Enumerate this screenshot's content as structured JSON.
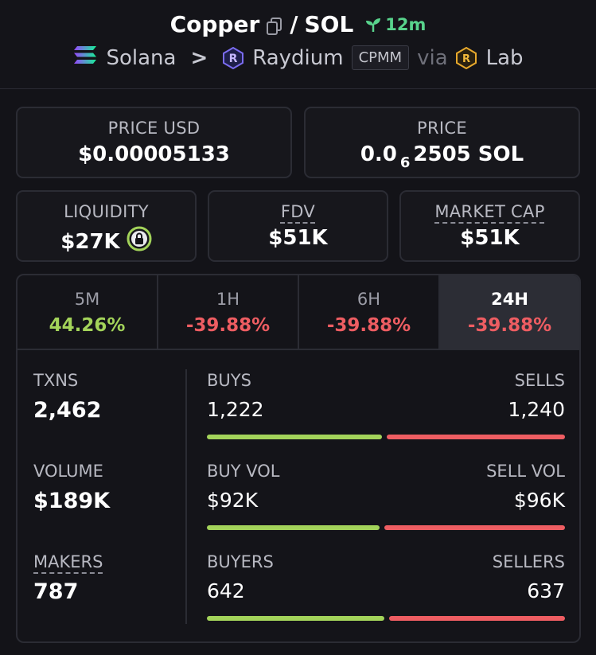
{
  "header": {
    "token": "Copper",
    "separator": "/",
    "quote": "SOL",
    "age": "12m",
    "chain": "Solana",
    "chevron": ">",
    "dex": "Raydium",
    "pool_type": "CPMM",
    "via": "via",
    "launchpad": "Lab"
  },
  "price_usd": {
    "label": "PRICE USD",
    "value": "$0.00005133"
  },
  "price_native": {
    "label": "PRICE",
    "prefix": "0.0",
    "zeros": "6",
    "digits": "2505",
    "unit": "SOL"
  },
  "liquidity": {
    "label": "LIQUIDITY",
    "value": "$27K"
  },
  "fdv": {
    "label": "FDV",
    "value": "$51K"
  },
  "market_cap": {
    "label": "MARKET CAP",
    "value": "$51K"
  },
  "tabs": [
    {
      "label": "5M",
      "value": "44.26%",
      "trend": "pos"
    },
    {
      "label": "1H",
      "value": "-39.88%",
      "trend": "neg"
    },
    {
      "label": "6H",
      "value": "-39.88%",
      "trend": "neg"
    },
    {
      "label": "24H",
      "value": "-39.88%",
      "trend": "neg",
      "active": true
    }
  ],
  "left_metrics": {
    "txns": {
      "label": "TXNS",
      "value": "2,462"
    },
    "volume": {
      "label": "VOLUME",
      "value": "$189K"
    },
    "makers": {
      "label": "MAKERS",
      "value": "787"
    }
  },
  "splits": {
    "txns": {
      "left_label": "BUYS",
      "right_label": "SELLS",
      "left_value": "1,222",
      "right_value": "1,240",
      "buy_fraction": 0.496
    },
    "volume": {
      "left_label": "BUY VOL",
      "right_label": "SELL VOL",
      "left_value": "$92K",
      "right_value": "$96K",
      "buy_fraction": 0.489
    },
    "makers": {
      "left_label": "BUYERS",
      "right_label": "SELLERS",
      "left_value": "642",
      "right_value": "637",
      "buy_fraction": 0.502
    }
  },
  "colors": {
    "positive": "#a3d35a",
    "negative": "#ee5d62",
    "age": "#58d38c"
  }
}
